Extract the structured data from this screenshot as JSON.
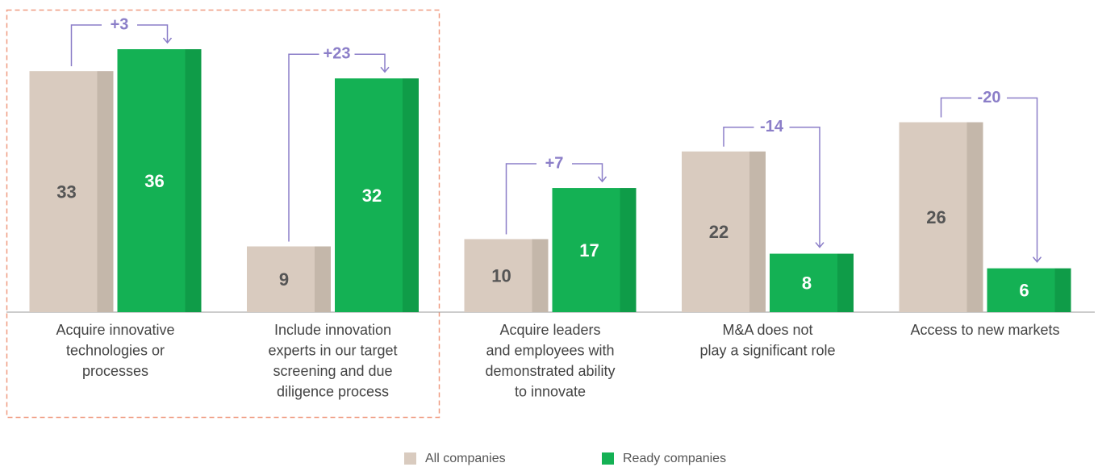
{
  "chart_data": {
    "type": "bar",
    "categories": [
      [
        "Acquire innovative",
        "technologies or",
        "processes"
      ],
      [
        "Include innovation",
        "experts in our target",
        "screening and due",
        "diligence process"
      ],
      [
        "Acquire leaders",
        "and employees with",
        "demonstrated ability",
        "to innovate"
      ],
      [
        "M&A does not",
        "play a significant role"
      ],
      [
        "Access to new markets"
      ]
    ],
    "series": [
      {
        "name": "All companies",
        "color": "#d9cbbf",
        "shade": "#c4b7aa",
        "label_color": "#555555",
        "values": [
          33,
          9,
          10,
          22,
          26
        ]
      },
      {
        "name": "Ready companies",
        "color": "#14b154",
        "shade": "#0f9c48",
        "label_color": "#ffffff",
        "values": [
          36,
          32,
          17,
          8,
          6
        ]
      }
    ],
    "differences": [
      3,
      23,
      7,
      -14,
      -20
    ],
    "difference_labels": [
      "+3",
      "+23",
      "+7",
      "-14",
      "-20"
    ],
    "annotation_color": "#8b7ec8",
    "ylim": [
      0,
      36
    ]
  }
}
